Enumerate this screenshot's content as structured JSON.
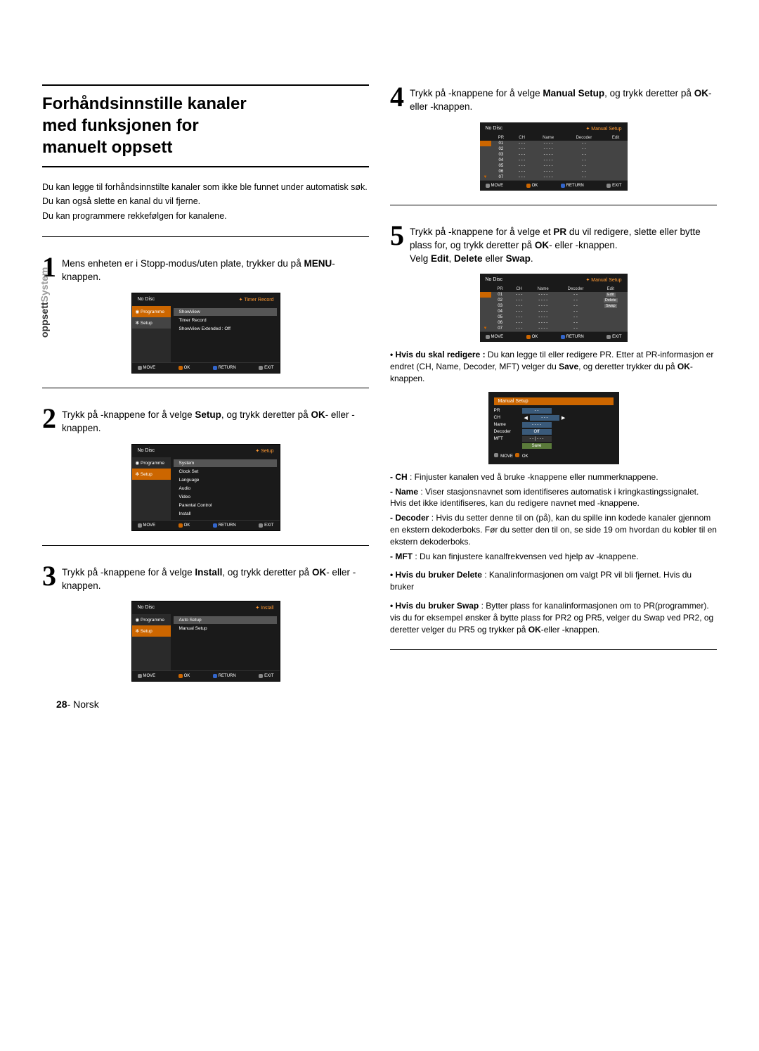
{
  "sidebar_label_light": "System",
  "sidebar_label_dark": "oppsett",
  "page_number": "28",
  "page_lang": "Norsk",
  "title_l1": "Forhåndsinnstille kanaler",
  "title_l2": "med funksjonen for",
  "title_l3": "manuelt oppsett",
  "intro": {
    "l1": "Du kan legge til forhåndsinnstilte kanaler som ikke ble funnet under automatisk søk.",
    "l2": "Du kan også slette en kanal du vil fjerne.",
    "l3": "Du kan programmere rekkefølgen for kanalene."
  },
  "step1_text": "Mens enheten er i Stopp-modus/uten plate, trykker du på ",
  "step1_bold": "MENU",
  "step1_after": "-knappen.",
  "step2_a": "Trykk på ",
  "step2_b": "-knappene for å velge ",
  "step2_bold": "Setup",
  "step2_c": ", og trykk deretter på ",
  "step2_okbold": "OK",
  "step2_d": "- eller    -knappen.",
  "step3_a": "Trykk på ",
  "step3_b": "-knappene for å velge ",
  "step3_bold": "Install",
  "step3_c": ", og trykk deretter på ",
  "step3_okbold": "OK",
  "step3_d": "- eller    -knappen.",
  "step4_a": "Trykk på ",
  "step4_b": "-knappene for å velge ",
  "step4_bold": "Manual Setup",
  "step4_c": ", og trykk deretter på ",
  "step4_okbold": "OK",
  "step4_d": "- eller    -knappen.",
  "step5_a": "Trykk på ",
  "step5_b": "-knappene for å velge et ",
  "step5_bold": "PR",
  "step5_c": " du vil redigere, slette eller bytte plass for, og trykk deretter på ",
  "step5_okbold": "OK",
  "step5_d": "- eller    -knappen.",
  "step5_e": "Velg ",
  "step5_e1": "Edit",
  "step5_e2": "Delete",
  "step5_e3": "Swap",
  "step5_eller": " eller ",
  "step5_comma": ", ",
  "step5_dot": ".",
  "screen_nodisc": "No Disc",
  "screen1_right": "Timer Record",
  "screen1_sb1": "Programme",
  "screen1_sb2": "Setup",
  "screen1_l1": "ShowView",
  "screen1_l2": "Timer Record",
  "screen1_l3": "ShowView Extended : Off",
  "screen2_right": "Setup",
  "screen2_list": [
    "System",
    "Clock Set",
    "Language",
    "Audio",
    "Video",
    "Parental Control",
    "Install"
  ],
  "screen3_right": "Install",
  "screen3_l1": "Auto Setup",
  "screen3_l2": "Manual Setup",
  "screen4_right": "Manual Setup",
  "tbl_heads": [
    "PR",
    "CH",
    "Name",
    "Decoder",
    "Edit"
  ],
  "tbl_rows": [
    [
      "01",
      "- - -",
      "- - - -",
      "- -",
      ""
    ],
    [
      "02",
      "- - -",
      "- - - -",
      "- -",
      ""
    ],
    [
      "03",
      "- - -",
      "- - - -",
      "- -",
      ""
    ],
    [
      "04",
      "- - -",
      "- - - -",
      "- -",
      ""
    ],
    [
      "05",
      "- - -",
      "- - - -",
      "- -",
      ""
    ],
    [
      "06",
      "- - -",
      "- - - -",
      "- -",
      ""
    ],
    [
      "07",
      "- - -",
      "- - - -",
      "- -",
      ""
    ]
  ],
  "edit_labels": [
    "Edit",
    "Delete",
    "Swap"
  ],
  "footer_move": "MOVE",
  "footer_ok": "OK",
  "footer_return": "RETURN",
  "footer_exit": "EXIT",
  "form_title": "Manual Setup",
  "form_rows": [
    {
      "lbl": "PR",
      "val": "- -"
    },
    {
      "lbl": "CH",
      "val": "- - -"
    },
    {
      "lbl": "Name",
      "val": "- - - -"
    },
    {
      "lbl": "Decoder",
      "val": "Off"
    },
    {
      "lbl": "MFT",
      "val": "- - -"
    }
  ],
  "form_save": "Save",
  "notes": {
    "edit_head": "• Hvis du skal redigere :",
    "edit_body": " Du kan legge til eller redigere PR. Etter at PR-informasjon er endret (CH, Name, Decoder, MFT) velger du ",
    "edit_save": "Save",
    "edit_body2": ", og deretter trykker du på ",
    "edit_ok": "OK",
    "edit_body3": "-knappen.",
    "ch_head": "- CH",
    "ch_body": " : Finjuster kanalen ved å bruke        -knappene eller nummerknappene.",
    "name_head": "- Name",
    "name_body": " : Viser stasjonsnavnet som identifiseres automatisk i kringkastingssignalet. Hvis det ikke identifiseres, kan du redigere navnet med             -knappene.",
    "dec_head": "- Decoder",
    "dec_body": " : Hvis du setter denne til on (på), kan du spille inn kodede kanaler gjennom en ekstern dekoderboks. Før du setter den til on, se side 19 om hvordan du kobler til en ekstern dekoderboks.",
    "mft_head": "- MFT",
    "mft_body": " : Du kan finjustere kanalfrekvensen ved hjelp av -knappene.",
    "del_head": "• Hvis du bruker Delete",
    "del_body": " : Kanalinformasjonen om valgt PR vil bli fjernet. Hvis du bruker",
    "swap_head": "• Hvis du bruker Swap",
    "swap_body": " : Bytter plass for kanalinformasjonen om to PR(programmer). vis du for eksempel ønsker å bytte plass for PR2 og PR5, velger du Swap ved PR2, og deretter velger du PR5 og trykker på ",
    "swap_ok": "OK",
    "swap_body2": "-eller    -knappen."
  }
}
